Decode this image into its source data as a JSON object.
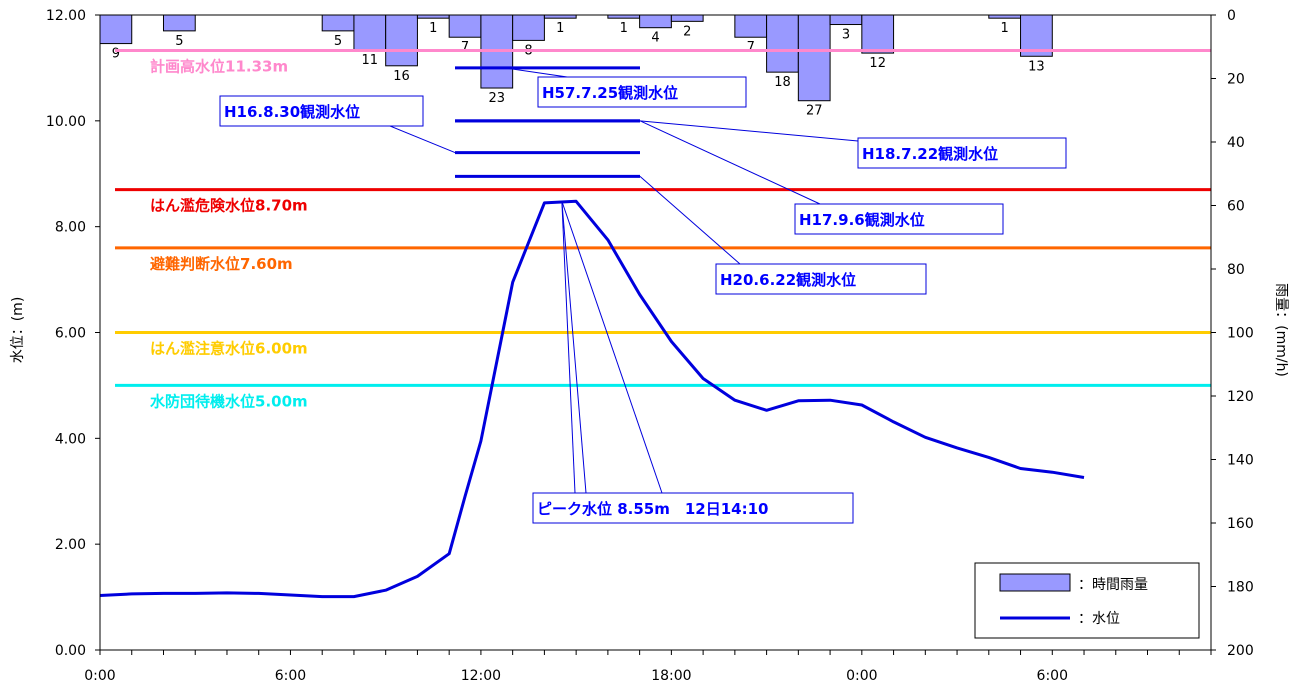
{
  "chart_data": {
    "type": "line+bar",
    "x_axis": {
      "ticks": [
        {
          "hour": 0,
          "label": "0:00"
        },
        {
          "hour": 6,
          "label": "6:00"
        },
        {
          "hour": 12,
          "label": "12:00"
        },
        {
          "hour": 18,
          "label": "18:00"
        },
        {
          "hour": 24,
          "label": "0:00"
        },
        {
          "hour": 30,
          "label": "6:00"
        }
      ],
      "range_hours": [
        0,
        35
      ]
    },
    "y_left": {
      "label": "水位：(m)",
      "ylim": [
        0,
        12
      ],
      "ticks": [
        "0.00",
        "2.00",
        "4.00",
        "6.00",
        "8.00",
        "10.00",
        "12.00"
      ]
    },
    "y_right": {
      "label": "雨量：(mm/h)",
      "ylim": [
        0,
        200
      ],
      "inverted": true,
      "ticks": [
        "0",
        "20",
        "40",
        "60",
        "80",
        "100",
        "120",
        "140",
        "160",
        "180",
        "200"
      ]
    },
    "rainfall": {
      "name": "：時間雨量",
      "color": "#9999ff",
      "bars": [
        {
          "hour": 0,
          "value": 9,
          "label": "9"
        },
        {
          "hour": 2,
          "value": 5,
          "label": "5"
        },
        {
          "hour": 7,
          "value": 5,
          "label": "5"
        },
        {
          "hour": 8,
          "value": 11,
          "label": "11"
        },
        {
          "hour": 9,
          "value": 16,
          "label": "16"
        },
        {
          "hour": 10,
          "value": 1,
          "label": "1"
        },
        {
          "hour": 11,
          "value": 7,
          "label": "7"
        },
        {
          "hour": 12,
          "value": 23,
          "label": "23"
        },
        {
          "hour": 13,
          "value": 8,
          "label": "8"
        },
        {
          "hour": 14,
          "value": 1,
          "label": "1"
        },
        {
          "hour": 16,
          "value": 1,
          "label": "1"
        },
        {
          "hour": 17,
          "value": 4,
          "label": "4"
        },
        {
          "hour": 18,
          "value": 2,
          "label": "2"
        },
        {
          "hour": 20,
          "value": 7,
          "label": "7"
        },
        {
          "hour": 21,
          "value": 18,
          "label": "18"
        },
        {
          "hour": 22,
          "value": 27,
          "label": "27"
        },
        {
          "hour": 23,
          "value": 3,
          "label": "3"
        },
        {
          "hour": 24,
          "value": 12,
          "label": "12"
        },
        {
          "hour": 28,
          "value": 1,
          "label": "1"
        },
        {
          "hour": 29,
          "value": 13,
          "label": "13"
        }
      ]
    },
    "water_level": {
      "name": "：水位",
      "color": "#0000dd",
      "points": [
        [
          0,
          1.03
        ],
        [
          1,
          1.06
        ],
        [
          2,
          1.07
        ],
        [
          3,
          1.07
        ],
        [
          4,
          1.08
        ],
        [
          5,
          1.07
        ],
        [
          6,
          1.04
        ],
        [
          7,
          1.01
        ],
        [
          8,
          1.01
        ],
        [
          9,
          1.13
        ],
        [
          10,
          1.39
        ],
        [
          11,
          1.82
        ],
        [
          11.5,
          2.9
        ],
        [
          12,
          3.95
        ],
        [
          13,
          6.95
        ],
        [
          14,
          8.45
        ],
        [
          15,
          8.48
        ],
        [
          16,
          7.75
        ],
        [
          17,
          6.72
        ],
        [
          18,
          5.83
        ],
        [
          19,
          5.13
        ],
        [
          20,
          4.72
        ],
        [
          21,
          4.53
        ],
        [
          22,
          4.71
        ],
        [
          23,
          4.72
        ],
        [
          24,
          4.63
        ],
        [
          25,
          4.31
        ],
        [
          26,
          4.02
        ],
        [
          27,
          3.82
        ],
        [
          28,
          3.64
        ],
        [
          29,
          3.43
        ],
        [
          30,
          3.36
        ],
        [
          31,
          3.26
        ]
      ]
    },
    "reference_levels": [
      {
        "label": "計画高水位11.33m",
        "value": 11.33,
        "color": "#ff88cc"
      },
      {
        "label": "はん濫危険水位8.70m",
        "value": 8.7,
        "color": "#ee0000"
      },
      {
        "label": "避難判断水位7.60m",
        "value": 7.6,
        "color": "#ff6600"
      },
      {
        "label": "はん濫注意水位6.00m",
        "value": 6.0,
        "color": "#ffcc00"
      },
      {
        "label": "水防団待機水位5.00m",
        "value": 5.0,
        "color": "#00eeee"
      }
    ],
    "historical_levels": [
      {
        "label": "H57.7.25観測水位",
        "value": 11.0
      },
      {
        "label": "H18.7.22観測水位",
        "value": 10.0
      },
      {
        "label": "H16.8.30観測水位",
        "value": 9.4
      },
      {
        "label": "H17.9.6観測水位",
        "value": 10.0
      },
      {
        "label": "H20.6.22観測水位",
        "value": 8.95
      }
    ],
    "peak": {
      "label": "ピーク水位 8.55m　12日14:10",
      "value": 8.55
    },
    "legend": {
      "position": "bottom-right"
    }
  }
}
